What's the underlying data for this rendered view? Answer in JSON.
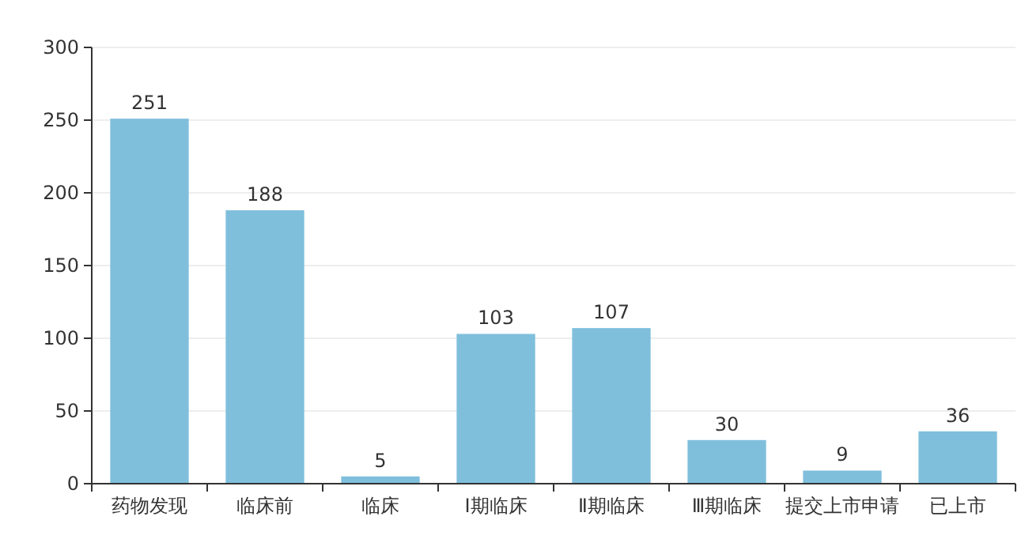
{
  "chart_data": {
    "type": "bar",
    "categories": [
      "药物发现",
      "临床前",
      "临床",
      "Ⅰ期临床",
      "Ⅱ期临床",
      "Ⅲ期临床",
      "提交上市申请",
      "已上市"
    ],
    "values": [
      251,
      188,
      5,
      103,
      107,
      30,
      9,
      36
    ],
    "color": "#7fbfdc",
    "ylim": [
      0,
      300
    ],
    "yticks": [
      0,
      50,
      100,
      150,
      200,
      250,
      300
    ],
    "grid": "y",
    "data_labels": true
  }
}
